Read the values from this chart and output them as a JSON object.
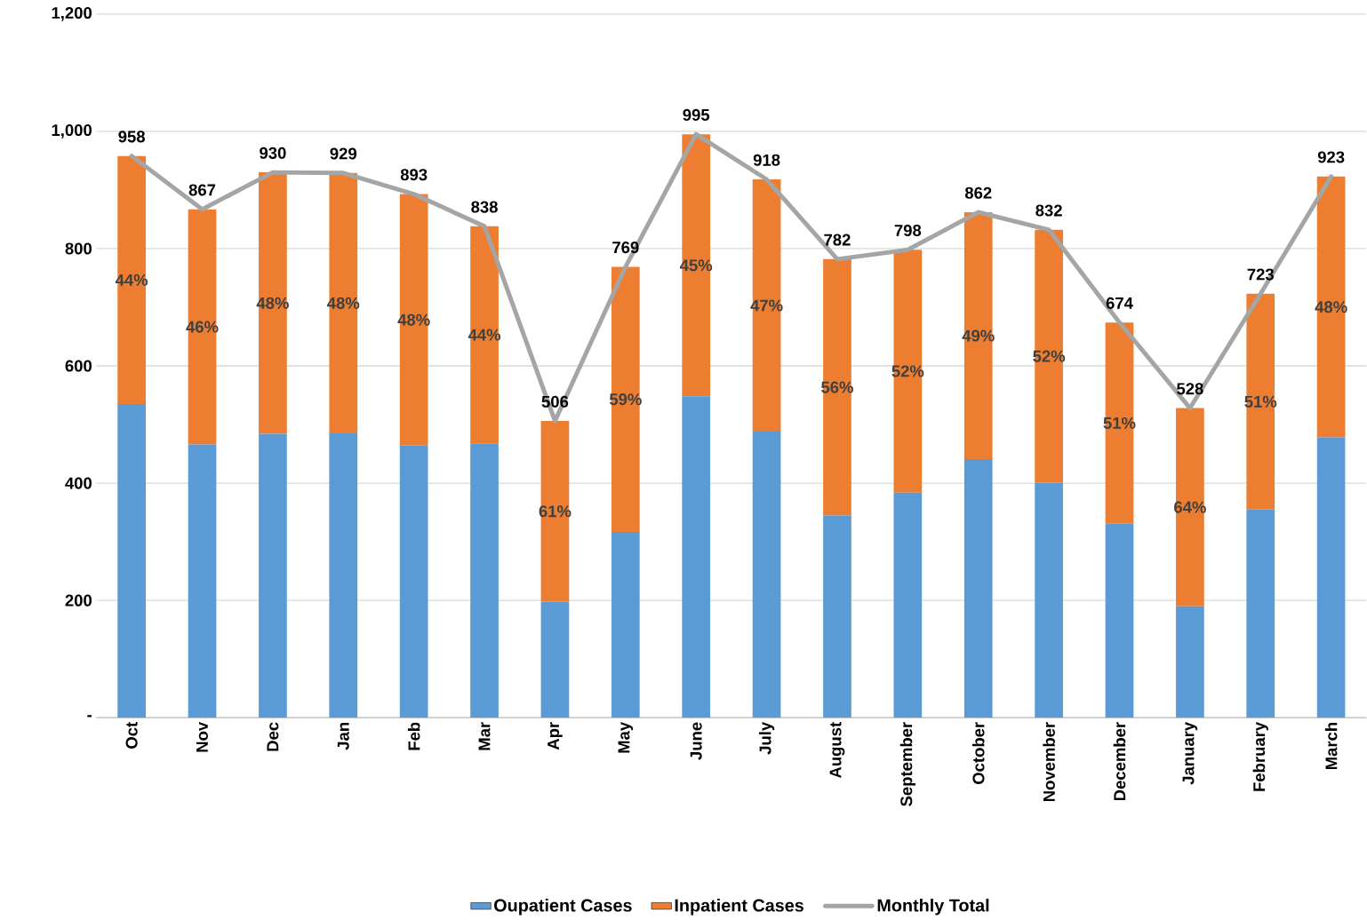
{
  "chart_data": {
    "type": "bar",
    "stacked": true,
    "categories": [
      "Oct",
      "Nov",
      "Dec",
      "Jan",
      "Feb",
      "Mar",
      "Apr",
      "May",
      "June",
      "July",
      "August",
      "September",
      "October",
      "November",
      "December",
      "January",
      "February",
      "March"
    ],
    "series": [
      {
        "name": "Oupatient Cases",
        "type": "bar",
        "color": "#5b9bd5",
        "values": [
          535,
          466,
          484,
          485,
          464,
          468,
          198,
          317,
          548,
          488,
          345,
          384,
          441,
          401,
          331,
          190,
          355,
          478
        ]
      },
      {
        "name": "Inpatient Cases",
        "type": "bar",
        "color": "#ed7d31",
        "values": [
          423,
          401,
          446,
          444,
          429,
          370,
          308,
          452,
          447,
          430,
          437,
          414,
          421,
          431,
          343,
          338,
          368,
          445
        ]
      },
      {
        "name": "Monthly Total",
        "type": "line",
        "color": "#a5a5a5",
        "values": [
          958,
          867,
          930,
          929,
          893,
          838,
          506,
          769,
          995,
          918,
          782,
          798,
          862,
          832,
          674,
          528,
          723,
          923
        ],
        "value_labels": [
          "958",
          "867",
          "930",
          "929",
          "893",
          "838",
          "506",
          "769",
          "995",
          "918",
          "782",
          "798",
          "862",
          "832",
          "674",
          "528",
          "723",
          "923"
        ]
      }
    ],
    "annotations": [
      "44%",
      "46%",
      "48%",
      "48%",
      "48%",
      "44%",
      "61%",
      "59%",
      "45%",
      "47%",
      "56%",
      "52%",
      "49%",
      "52%",
      "51%",
      "64%",
      "51%",
      "48%"
    ],
    "ylim": [
      0,
      1200
    ],
    "yticks": [
      {
        "value": 0,
        "label": "-"
      },
      200,
      400,
      600,
      800,
      {
        "value": 1000,
        "label": "1,000"
      },
      {
        "value": 1200,
        "label": "1,200"
      }
    ],
    "grid": "y",
    "legend": "bottom"
  }
}
